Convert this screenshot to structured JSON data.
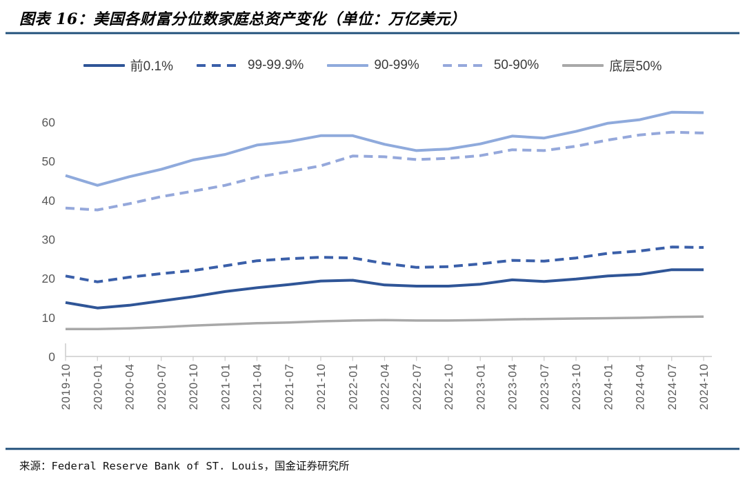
{
  "header": {
    "title": "图表 16：美国各财富分位数家庭总资产变化（单位：万亿美元）"
  },
  "source": {
    "text": "来源：Federal Reserve Bank of ST. Louis，国金证券研究所"
  },
  "colors": {
    "navy": "#2F5597",
    "navy_dashed": "#3A5FA9",
    "light_blue": "#8FAADC",
    "light_blue_dashed": "#95A8DB",
    "gray": "#A8A8A8",
    "rule": "#1F4E79",
    "axis": "#CBCBCB",
    "tick_label": "#595959",
    "legend_text": "#3A3A3A"
  },
  "chart_data": {
    "type": "line",
    "title": "美国各财富分位数家庭总资产变化",
    "unit": "万亿美元",
    "legend_position": "top",
    "grid": false,
    "ylim": [
      0,
      65
    ],
    "yticks": [
      0,
      10,
      20,
      30,
      40,
      50,
      60
    ],
    "x": [
      "2019-10",
      "2020-01",
      "2020-04",
      "2020-07",
      "2020-10",
      "2021-01",
      "2021-04",
      "2021-07",
      "2021-10",
      "2022-01",
      "2022-04",
      "2022-07",
      "2022-10",
      "2023-01",
      "2023-04",
      "2023-07",
      "2023-10",
      "2024-01",
      "2024-04",
      "2024-07",
      "2024-10"
    ],
    "series": [
      {
        "name": "前0.1%",
        "style": "solid",
        "color_key": "navy",
        "width": 4,
        "values": [
          13.8,
          12.4,
          13.1,
          14.2,
          15.3,
          16.6,
          17.6,
          18.4,
          19.3,
          19.5,
          18.3,
          18.0,
          18.0,
          18.5,
          19.6,
          19.2,
          19.8,
          20.6,
          21.0,
          22.2,
          22.2
        ]
      },
      {
        "name": "99-99.9%",
        "style": "dashed",
        "color_key": "navy_dashed",
        "width": 4,
        "values": [
          20.6,
          19.1,
          20.3,
          21.2,
          22.0,
          23.2,
          24.5,
          25.0,
          25.4,
          25.2,
          23.8,
          22.8,
          23.0,
          23.7,
          24.6,
          24.4,
          25.2,
          26.4,
          27.0,
          28.0,
          27.9
        ]
      },
      {
        "name": "90-99%",
        "style": "solid",
        "color_key": "light_blue",
        "width": 4,
        "values": [
          46.3,
          43.8,
          46.0,
          47.9,
          50.3,
          51.7,
          54.1,
          55.0,
          56.5,
          56.5,
          54.3,
          52.7,
          53.1,
          54.4,
          56.4,
          55.9,
          57.6,
          59.7,
          60.6,
          62.5,
          62.4
        ]
      },
      {
        "name": "50-90%",
        "style": "dashed",
        "color_key": "light_blue_dashed",
        "width": 4,
        "values": [
          38.0,
          37.5,
          39.1,
          40.9,
          42.3,
          43.8,
          45.9,
          47.3,
          48.8,
          51.3,
          51.1,
          50.4,
          50.7,
          51.4,
          52.9,
          52.7,
          53.8,
          55.4,
          56.7,
          57.4,
          57.2
        ]
      },
      {
        "name": "底层50%",
        "style": "solid",
        "color_key": "gray",
        "width": 3.5,
        "values": [
          7.0,
          7.0,
          7.2,
          7.5,
          7.9,
          8.2,
          8.5,
          8.7,
          9.0,
          9.2,
          9.3,
          9.2,
          9.2,
          9.3,
          9.5,
          9.6,
          9.7,
          9.8,
          9.9,
          10.1,
          10.2
        ]
      }
    ]
  }
}
